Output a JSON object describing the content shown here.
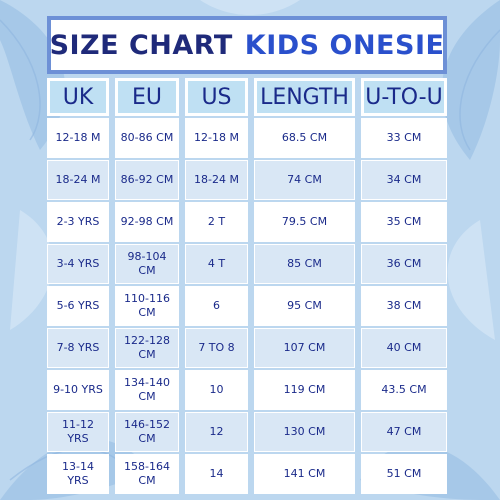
{
  "title": {
    "part1": "SIZE CHART",
    "part2": "KIDS ONESIE"
  },
  "columns": [
    "UK",
    "EU",
    "US",
    "LENGTH",
    "U-TO-U"
  ],
  "rows": [
    [
      "12-18 M",
      "80-86 CM",
      "12-18 M",
      "68.5 CM",
      "33 CM"
    ],
    [
      "18-24 M",
      "86-92 CM",
      "18-24 M",
      "74 CM",
      "34 CM"
    ],
    [
      "2-3 YRS",
      "92-98 CM",
      "2 T",
      "79.5 CM",
      "35 CM"
    ],
    [
      "3-4 YRS",
      "98-104 CM",
      "4 T",
      "85 CM",
      "36 CM"
    ],
    [
      "5-6 YRS",
      "110-116 CM",
      "6",
      "95 CM",
      "38 CM"
    ],
    [
      "7-8 YRS",
      "122-128 CM",
      "7 TO 8",
      "107 CM",
      "40 CM"
    ],
    [
      "9-10 YRS",
      "134-140 CM",
      "10",
      "119 CM",
      "43.5 CM"
    ],
    [
      "11-12 YRS",
      "146-152 CM",
      "12",
      "130 CM",
      "47 CM"
    ],
    [
      "13-14 YRS",
      "158-164 CM",
      "14",
      "141 CM",
      "51 CM"
    ]
  ],
  "colors": {
    "title_dark": "#1f2a7a",
    "title_accent": "#2a50cc",
    "header_bg": "#bfe0f3",
    "row_light": "#ffffff",
    "row_alt": "#d9e7f5",
    "background": "#bcd7ef"
  }
}
